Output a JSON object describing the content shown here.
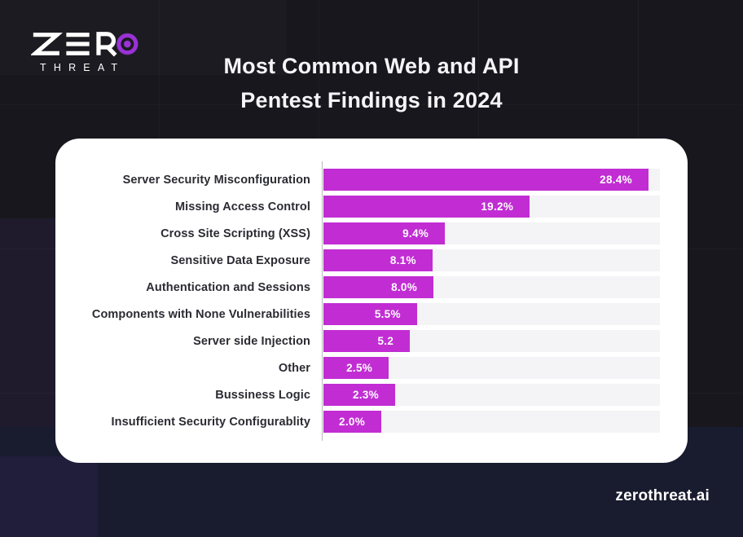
{
  "logo": {
    "brand_top": "ZERO",
    "brand_bottom": "THREAT"
  },
  "title": {
    "line1": "Most Common Web and API",
    "line2": "Pentest Findings in 2024"
  },
  "footer": {
    "site": "zerothreat.ai"
  },
  "colors": {
    "accent_magenta": "#c12dd3",
    "logo_purple": "#9b32d8",
    "page_bg": "#17171d",
    "bottom_strip_bg": "#191c2f",
    "card_bg": "#ffffff",
    "track_bg": "#f4f4f6",
    "label_text": "#2b2b33",
    "title_text": "#f5f4f7"
  },
  "chart_data": {
    "type": "bar",
    "orientation": "horizontal",
    "title": "Most Common Web and API Pentest Findings in 2024",
    "categories": [
      "Server Security Misconfiguration",
      "Missing Access Control",
      "Cross Site Scripting (XSS)",
      "Sensitive Data Exposure",
      "Authentication and Sessions",
      "Components with None Vulnerabilities",
      "Server side Injection",
      "Other",
      "Bussiness Logic",
      "Insufficient Security Configurablity"
    ],
    "values": [
      28.4,
      19.2,
      9.4,
      8.1,
      8.0,
      5.5,
      5.2,
      2.5,
      2.3,
      2.0
    ],
    "value_labels": [
      "28.4%",
      "19.2%",
      "9.4%",
      "8.1%",
      "8.0%",
      "5.5%",
      "5.2",
      "2.5%",
      "2.3%",
      "2.0%"
    ],
    "unit": "%",
    "xlabel": "",
    "ylabel": "",
    "xlim": [
      0,
      29.4
    ],
    "grid": false,
    "legend": false,
    "value_label_position": "inside-right",
    "bar_width_fractions": [
      0.966,
      0.613,
      0.361,
      0.324,
      0.327,
      0.278,
      0.257,
      0.194,
      0.213,
      0.172
    ]
  }
}
